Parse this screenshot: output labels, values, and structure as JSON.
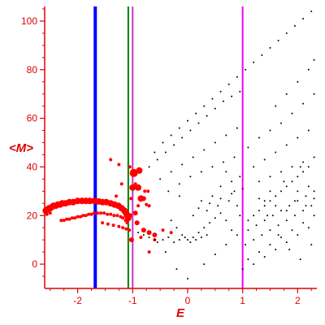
{
  "chart_data": {
    "type": "scatter",
    "title": "",
    "xlabel": "E",
    "ylabel": "<M>",
    "xlim": [
      -2.6,
      2.35
    ],
    "ylim": [
      -10,
      106
    ],
    "grid": false,
    "legend": "none",
    "axis_color": "#e00000",
    "x_ticks": [
      -2,
      -1,
      0,
      1,
      2
    ],
    "x_tick_labels": [
      "-2",
      "-1",
      "0",
      "1",
      "2"
    ],
    "y_ticks": [
      0,
      20,
      40,
      60,
      80,
      100
    ],
    "y_tick_labels": [
      "0",
      "20",
      "40",
      "60",
      "80",
      "100"
    ],
    "vertical_lines": [
      {
        "x": -1.68,
        "color": "#0000ff",
        "width": 4
      },
      {
        "x": -1.08,
        "color": "#008000",
        "width": 2
      },
      {
        "x": -1.0,
        "color": "#cc33cc",
        "width": 2
      },
      {
        "x": 1.0,
        "color": "#ee00ee",
        "width": 2
      }
    ],
    "series": [
      {
        "color": "#ff0000",
        "points": [
          [
            -2.58,
            22,
            4
          ],
          [
            -2.55,
            22.5,
            4
          ],
          [
            -2.52,
            23,
            4
          ],
          [
            -2.5,
            23,
            4
          ],
          [
            -2.47,
            23.5,
            4
          ],
          [
            -2.44,
            24,
            4
          ],
          [
            -2.4,
            24,
            4
          ],
          [
            -2.36,
            24.5,
            4
          ],
          [
            -2.32,
            24.5,
            4
          ],
          [
            -2.28,
            25,
            4
          ],
          [
            -2.22,
            25,
            4
          ],
          [
            -2.15,
            25.5,
            4
          ],
          [
            -2.08,
            25.5,
            4
          ],
          [
            -2.0,
            26,
            4
          ],
          [
            -1.92,
            26,
            4
          ],
          [
            -1.85,
            26,
            4
          ],
          [
            -1.78,
            26,
            4
          ],
          [
            -1.7,
            26,
            4
          ],
          [
            -1.62,
            25.8,
            4
          ],
          [
            -1.55,
            25.5,
            4
          ],
          [
            -1.48,
            25.5,
            4
          ],
          [
            -1.4,
            25,
            4
          ],
          [
            -1.33,
            24.5,
            4
          ],
          [
            -1.26,
            24,
            4
          ],
          [
            -1.2,
            23,
            4
          ],
          [
            -1.15,
            22,
            4
          ],
          [
            -1.12,
            21,
            4
          ],
          [
            -1.1,
            20,
            4
          ],
          [
            -1.08,
            19,
            4
          ],
          [
            -2.62,
            22,
            3
          ],
          [
            -2.56,
            20.5,
            2
          ],
          [
            -2.5,
            21,
            2
          ],
          [
            -2.3,
            18,
            2
          ],
          [
            -2.25,
            18,
            2
          ],
          [
            -2.2,
            18.5,
            2
          ],
          [
            -2.15,
            18.5,
            2
          ],
          [
            -2.1,
            19,
            2
          ],
          [
            -2.05,
            19,
            2
          ],
          [
            -2.0,
            19.5,
            2
          ],
          [
            -1.95,
            19.5,
            2
          ],
          [
            -1.9,
            20,
            2
          ],
          [
            -1.85,
            20,
            2
          ],
          [
            -1.8,
            20.5,
            2
          ],
          [
            -1.75,
            20.5,
            2
          ],
          [
            -1.7,
            21,
            2
          ],
          [
            -1.64,
            21,
            2
          ],
          [
            -1.58,
            21,
            2
          ],
          [
            -1.52,
            21,
            2
          ],
          [
            -1.46,
            20.5,
            2
          ],
          [
            -1.4,
            20.5,
            2
          ],
          [
            -1.34,
            20,
            2
          ],
          [
            -1.28,
            20,
            2
          ],
          [
            -1.22,
            19.5,
            2
          ],
          [
            -1.18,
            19,
            2
          ],
          [
            -1.13,
            18,
            2
          ],
          [
            -1.1,
            17,
            2
          ],
          [
            -1.55,
            17,
            2
          ],
          [
            -1.45,
            16.5,
            2
          ],
          [
            -1.35,
            16,
            2
          ],
          [
            -1.25,
            15.5,
            2
          ],
          [
            -1.18,
            15,
            2
          ],
          [
            -1.12,
            14.5,
            2
          ],
          [
            -1.06,
            14,
            2
          ],
          [
            -0.98,
            37.5,
            5
          ],
          [
            -0.88,
            38.5,
            4
          ],
          [
            -1.0,
            31.5,
            4
          ],
          [
            -0.9,
            31.5,
            4
          ],
          [
            -0.85,
            27,
            4
          ],
          [
            -0.8,
            27,
            3
          ],
          [
            -0.75,
            24.5,
            2
          ],
          [
            -0.7,
            24,
            2
          ],
          [
            -0.78,
            30,
            2
          ],
          [
            -0.72,
            30,
            2
          ],
          [
            -0.95,
            21,
            3
          ],
          [
            -1.05,
            20,
            3
          ],
          [
            -0.92,
            17,
            3
          ],
          [
            -0.8,
            14,
            3
          ],
          [
            -0.7,
            13,
            3
          ],
          [
            -0.6,
            12,
            3
          ],
          [
            -1.02,
            10,
            3
          ],
          [
            -0.85,
            11,
            2
          ],
          [
            -0.7,
            5,
            2
          ],
          [
            -1.03,
            27,
            2
          ],
          [
            -1.4,
            43,
            2
          ],
          [
            -1.25,
            41,
            2
          ],
          [
            -1.05,
            40,
            2
          ],
          [
            -1.2,
            33,
            2
          ],
          [
            -0.95,
            33,
            2
          ],
          [
            -1.3,
            28,
            2
          ],
          [
            -0.9,
            24,
            2
          ],
          [
            -0.6,
            10,
            2
          ],
          [
            -0.45,
            14,
            2
          ],
          [
            -0.3,
            13,
            2
          ]
        ]
      },
      {
        "color": "#000000",
        "points": [
          [
            -0.6,
            46
          ],
          [
            -0.45,
            50
          ],
          [
            -0.3,
            53
          ],
          [
            -0.15,
            56
          ],
          [
            0.0,
            59
          ],
          [
            0.15,
            62
          ],
          [
            0.3,
            65
          ],
          [
            0.45,
            68
          ],
          [
            0.6,
            71
          ],
          [
            0.75,
            74
          ],
          [
            0.9,
            77
          ],
          [
            1.05,
            80
          ],
          [
            1.2,
            83
          ],
          [
            1.35,
            86
          ],
          [
            1.5,
            89
          ],
          [
            1.65,
            92
          ],
          [
            1.8,
            95
          ],
          [
            1.95,
            98
          ],
          [
            2.1,
            101
          ],
          [
            2.25,
            104
          ],
          [
            -0.7,
            40
          ],
          [
            -0.55,
            43
          ],
          [
            -0.4,
            46
          ],
          [
            -0.25,
            49
          ],
          [
            -0.1,
            52
          ],
          [
            0.05,
            55
          ],
          [
            0.2,
            58
          ],
          [
            0.35,
            61
          ],
          [
            0.5,
            64
          ],
          [
            0.65,
            67
          ],
          [
            0.8,
            69
          ],
          [
            0.95,
            71
          ],
          [
            -0.5,
            35
          ],
          [
            -0.3,
            38
          ],
          [
            -0.1,
            41
          ],
          [
            0.1,
            44
          ],
          [
            0.3,
            47
          ],
          [
            0.5,
            50
          ],
          [
            0.7,
            53
          ],
          [
            0.9,
            56
          ],
          [
            -0.35,
            30
          ],
          [
            -0.15,
            33
          ],
          [
            0.05,
            36
          ],
          [
            0.25,
            38
          ],
          [
            0.45,
            40
          ],
          [
            0.65,
            42
          ],
          [
            0.85,
            44
          ],
          [
            -0.3,
            18
          ],
          [
            -0.2,
            15
          ],
          [
            -0.1,
            12
          ],
          [
            0.0,
            10
          ],
          [
            0.1,
            11
          ],
          [
            0.2,
            13
          ],
          [
            0.3,
            15
          ],
          [
            0.4,
            17
          ],
          [
            0.5,
            19
          ],
          [
            0.6,
            21
          ],
          [
            -0.55,
            9
          ],
          [
            -0.45,
            10
          ],
          [
            -0.35,
            11
          ],
          [
            -0.25,
            9
          ],
          [
            -0.15,
            10
          ],
          [
            -0.05,
            11
          ],
          [
            0.05,
            9
          ],
          [
            0.15,
            10
          ],
          [
            0.25,
            11
          ],
          [
            0.35,
            12
          ],
          [
            -0.8,
            12
          ],
          [
            -0.7,
            11
          ],
          [
            -0.6,
            10
          ],
          [
            -0.9,
            13
          ],
          [
            -0.4,
            5
          ],
          [
            -0.2,
            -2
          ],
          [
            0.0,
            -6
          ],
          [
            0.3,
            0
          ],
          [
            0.5,
            4
          ],
          [
            0.7,
            8
          ],
          [
            0.9,
            12
          ],
          [
            0.2,
            23
          ],
          [
            0.4,
            25
          ],
          [
            0.6,
            27
          ],
          [
            0.8,
            29
          ],
          [
            1.0,
            31
          ],
          [
            1.1,
            18
          ],
          [
            1.2,
            20
          ],
          [
            1.3,
            22
          ],
          [
            1.4,
            24
          ],
          [
            1.5,
            26
          ],
          [
            1.6,
            28
          ],
          [
            1.7,
            30
          ],
          [
            1.8,
            32
          ],
          [
            1.9,
            34
          ],
          [
            2.0,
            36
          ],
          [
            2.1,
            38
          ],
          [
            2.2,
            40
          ],
          [
            1.1,
            14
          ],
          [
            1.25,
            16
          ],
          [
            1.4,
            18
          ],
          [
            1.55,
            20
          ],
          [
            1.7,
            22
          ],
          [
            1.85,
            24
          ],
          [
            2.0,
            26
          ],
          [
            2.15,
            28
          ],
          [
            2.3,
            30
          ],
          [
            1.05,
            8
          ],
          [
            1.2,
            10
          ],
          [
            1.35,
            12
          ],
          [
            1.5,
            14
          ],
          [
            1.65,
            16
          ],
          [
            1.8,
            18
          ],
          [
            1.95,
            20
          ],
          [
            2.1,
            22
          ],
          [
            2.25,
            24
          ],
          [
            1.1,
            2
          ],
          [
            1.3,
            5
          ],
          [
            1.5,
            8
          ],
          [
            1.7,
            11
          ],
          [
            1.9,
            14
          ],
          [
            2.1,
            17
          ],
          [
            2.3,
            20
          ],
          [
            1.0,
            -2
          ],
          [
            1.2,
            0
          ],
          [
            1.4,
            3
          ],
          [
            1.6,
            6
          ],
          [
            1.8,
            9
          ],
          [
            2.0,
            12
          ],
          [
            2.2,
            15
          ],
          [
            1.1,
            48
          ],
          [
            1.3,
            52
          ],
          [
            1.5,
            55
          ],
          [
            1.7,
            58
          ],
          [
            1.9,
            62
          ],
          [
            2.1,
            66
          ],
          [
            2.3,
            70
          ],
          [
            1.2,
            40
          ],
          [
            1.4,
            43
          ],
          [
            1.6,
            46
          ],
          [
            1.8,
            49
          ],
          [
            2.0,
            52
          ],
          [
            2.2,
            55
          ],
          [
            1.3,
            34
          ],
          [
            1.5,
            36
          ],
          [
            1.7,
            38
          ],
          [
            1.9,
            40
          ],
          [
            2.1,
            42
          ],
          [
            2.3,
            44
          ],
          [
            1.6,
            65
          ],
          [
            1.8,
            70
          ],
          [
            2.0,
            75
          ],
          [
            2.2,
            80
          ],
          [
            2.3,
            84
          ],
          [
            1.4,
            26
          ],
          [
            1.6,
            24
          ],
          [
            1.8,
            22
          ],
          [
            2.0,
            30
          ],
          [
            2.2,
            32
          ],
          [
            1.5,
            30
          ],
          [
            1.75,
            34
          ],
          [
            2.05,
            40
          ],
          [
            1.95,
            26
          ],
          [
            2.15,
            24
          ],
          [
            2.3,
            27
          ],
          [
            1.3,
            27
          ],
          [
            1.45,
            20
          ],
          [
            1.65,
            12
          ],
          [
            1.85,
            6
          ],
          [
            2.05,
            2
          ],
          [
            2.25,
            8
          ],
          [
            -0.15,
            28
          ],
          [
            0.1,
            20
          ],
          [
            0.35,
            22
          ],
          [
            0.55,
            24
          ],
          [
            0.75,
            26
          ],
          [
            0.9,
            24
          ],
          [
            0.7,
            18
          ],
          [
            0.8,
            14
          ],
          [
            0.95,
            20
          ],
          [
            0.6,
            32
          ],
          [
            0.8,
            34
          ],
          [
            0.95,
            36
          ],
          [
            0.7,
            38
          ],
          [
            0.85,
            30
          ],
          [
            0.45,
            28
          ],
          [
            0.25,
            26
          ]
        ]
      }
    ]
  }
}
